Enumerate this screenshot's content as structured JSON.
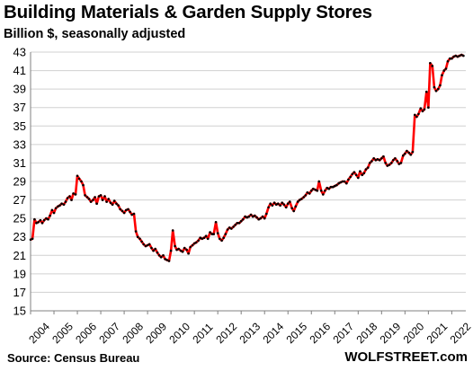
{
  "chart_data": {
    "type": "line",
    "title": "Building Materials & Garden Supply Stores",
    "subtitle": "Billion $, seasonally adjusted",
    "source": "Source: Census Bureau",
    "watermark": "WOLFSTREET.com",
    "xlabel": "",
    "ylabel": "",
    "ylim": [
      15,
      43
    ],
    "xlim": [
      2004,
      2022.6
    ],
    "y_ticks": [
      "15",
      "17",
      "19",
      "21",
      "23",
      "25",
      "27",
      "29",
      "31",
      "33",
      "35",
      "37",
      "39",
      "41",
      "43"
    ],
    "x_ticks": [
      "2004",
      "2005",
      "2006",
      "2007",
      "2008",
      "2009",
      "2010",
      "2011",
      "2012",
      "2013",
      "2014",
      "2015",
      "2016",
      "2017",
      "2018",
      "2019",
      "2020",
      "2021",
      "2022"
    ],
    "grid": true,
    "line_color": "#ff0000",
    "marker_color": "#000000",
    "series": [
      {
        "x": [
          2004.0,
          2004.08,
          2004.17,
          2004.25,
          2004.33,
          2004.42,
          2004.5,
          2004.58,
          2004.67,
          2004.75,
          2004.83,
          2004.92,
          2005.0,
          2005.08,
          2005.17,
          2005.25,
          2005.33,
          2005.42,
          2005.5,
          2005.58,
          2005.67,
          2005.75,
          2005.83,
          2005.92,
          2006.0,
          2006.08,
          2006.17,
          2006.25,
          2006.33,
          2006.42,
          2006.5,
          2006.58,
          2006.67,
          2006.75,
          2006.83,
          2006.92,
          2007.0,
          2007.08,
          2007.17,
          2007.25,
          2007.33,
          2007.42,
          2007.5,
          2007.58,
          2007.67,
          2007.75,
          2007.83,
          2007.92,
          2008.0,
          2008.08,
          2008.17,
          2008.25,
          2008.33,
          2008.42,
          2008.5,
          2008.58,
          2008.67,
          2008.75,
          2008.83,
          2008.92,
          2009.0,
          2009.08,
          2009.17,
          2009.25,
          2009.33,
          2009.42,
          2009.5,
          2009.58,
          2009.67,
          2009.75,
          2009.83,
          2009.92,
          2010.0,
          2010.08,
          2010.17,
          2010.25,
          2010.33,
          2010.42,
          2010.5,
          2010.58,
          2010.67,
          2010.75,
          2010.83,
          2010.92,
          2011.0,
          2011.08,
          2011.17,
          2011.25,
          2011.33,
          2011.42,
          2011.5,
          2011.58,
          2011.67,
          2011.75,
          2011.83,
          2011.92,
          2012.0,
          2012.08,
          2012.17,
          2012.25,
          2012.33,
          2012.42,
          2012.5,
          2012.58,
          2012.67,
          2012.75,
          2012.83,
          2012.92,
          2013.0,
          2013.08,
          2013.17,
          2013.25,
          2013.33,
          2013.42,
          2013.5,
          2013.58,
          2013.67,
          2013.75,
          2013.83,
          2013.92,
          2014.0,
          2014.08,
          2014.17,
          2014.25,
          2014.33,
          2014.42,
          2014.5,
          2014.58,
          2014.67,
          2014.75,
          2014.83,
          2014.92,
          2015.0,
          2015.08,
          2015.17,
          2015.25,
          2015.33,
          2015.42,
          2015.5,
          2015.58,
          2015.67,
          2015.75,
          2015.83,
          2015.92,
          2016.0,
          2016.08,
          2016.17,
          2016.25,
          2016.33,
          2016.42,
          2016.5,
          2016.58,
          2016.67,
          2016.75,
          2016.83,
          2016.92,
          2017.0,
          2017.08,
          2017.17,
          2017.25,
          2017.33,
          2017.42,
          2017.5,
          2017.58,
          2017.67,
          2017.75,
          2017.83,
          2017.92,
          2018.0,
          2018.08,
          2018.17,
          2018.25,
          2018.33,
          2018.42,
          2018.5,
          2018.58,
          2018.67,
          2018.75,
          2018.83,
          2018.92,
          2019.0,
          2019.08,
          2019.17,
          2019.25,
          2019.33,
          2019.42,
          2019.5,
          2019.58,
          2019.67,
          2019.75,
          2019.83,
          2019.92,
          2020.0,
          2020.08,
          2020.17,
          2020.25,
          2020.33,
          2020.42,
          2020.5,
          2020.58,
          2020.67,
          2020.75,
          2020.83,
          2020.92,
          2021.0,
          2021.08,
          2021.17,
          2021.25,
          2021.33,
          2021.42,
          2021.5,
          2021.58,
          2021.67,
          2021.75,
          2021.83,
          2021.92,
          2022.0,
          2022.08,
          2022.17,
          2022.25,
          2022.33,
          2022.42,
          2022.5
        ],
        "y": [
          22.7,
          22.8,
          24.9,
          24.5,
          24.6,
          24.8,
          24.5,
          24.8,
          25.0,
          24.9,
          25.3,
          25.9,
          25.6,
          26.1,
          26.3,
          26.4,
          26.6,
          26.5,
          26.8,
          27.2,
          27.4,
          27.0,
          27.7,
          27.6,
          29.6,
          29.3,
          29.0,
          28.6,
          27.5,
          27.3,
          27.1,
          26.8,
          27.0,
          27.3,
          26.6,
          27.4,
          27.5,
          27.0,
          27.4,
          26.8,
          27.1,
          26.7,
          26.5,
          26.9,
          26.6,
          26.4,
          26.0,
          25.8,
          25.6,
          25.9,
          26.0,
          25.7,
          25.4,
          25.5,
          23.6,
          23.0,
          22.8,
          22.5,
          22.2,
          22.0,
          22.1,
          22.2,
          21.8,
          21.5,
          21.7,
          21.3,
          21.0,
          20.8,
          21.0,
          20.6,
          20.5,
          20.4,
          21.5,
          23.7,
          22.0,
          21.6,
          21.7,
          21.5,
          21.4,
          21.8,
          21.6,
          21.2,
          21.9,
          22.1,
          22.3,
          22.4,
          22.6,
          22.9,
          22.8,
          22.9,
          23.1,
          22.8,
          23.5,
          23.3,
          23.3,
          24.6,
          23.4,
          22.8,
          22.6,
          22.9,
          23.3,
          23.8,
          24.0,
          23.9,
          24.1,
          24.3,
          24.5,
          24.5,
          24.7,
          24.9,
          25.2,
          25.1,
          25.2,
          25.4,
          25.2,
          25.3,
          25.1,
          24.9,
          25.0,
          25.2,
          25.0,
          25.5,
          26.2,
          26.6,
          26.4,
          26.7,
          26.5,
          26.6,
          26.4,
          26.7,
          26.5,
          26.2,
          26.6,
          26.8,
          26.1,
          25.8,
          26.3,
          26.8,
          27.0,
          27.1,
          27.3,
          27.5,
          27.8,
          27.7,
          28.0,
          28.2,
          28.1,
          28.0,
          29.0,
          28.0,
          27.6,
          28.0,
          28.3,
          28.2,
          28.4,
          28.4,
          28.5,
          28.6,
          28.8,
          28.9,
          29.0,
          29.0,
          28.8,
          29.2,
          29.5,
          29.8,
          30.0,
          29.7,
          29.4,
          30.1,
          29.7,
          29.9,
          30.3,
          30.5,
          31.0,
          31.2,
          31.5,
          31.3,
          31.4,
          31.3,
          31.5,
          31.7,
          31.0,
          30.7,
          30.8,
          31.0,
          31.3,
          31.5,
          31.2,
          30.9,
          31.0,
          31.8,
          32.0,
          32.3,
          32.1,
          31.9,
          32.2,
          36.2,
          36.0,
          36.3,
          36.9,
          36.6,
          36.8,
          38.7,
          37.0,
          41.8,
          41.5,
          39.2,
          38.8,
          39.0,
          39.4,
          40.5,
          41.0,
          41.2,
          42.0,
          42.3,
          42.3,
          42.5,
          42.6,
          42.5,
          42.6,
          42.7,
          42.6
        ]
      }
    ]
  }
}
